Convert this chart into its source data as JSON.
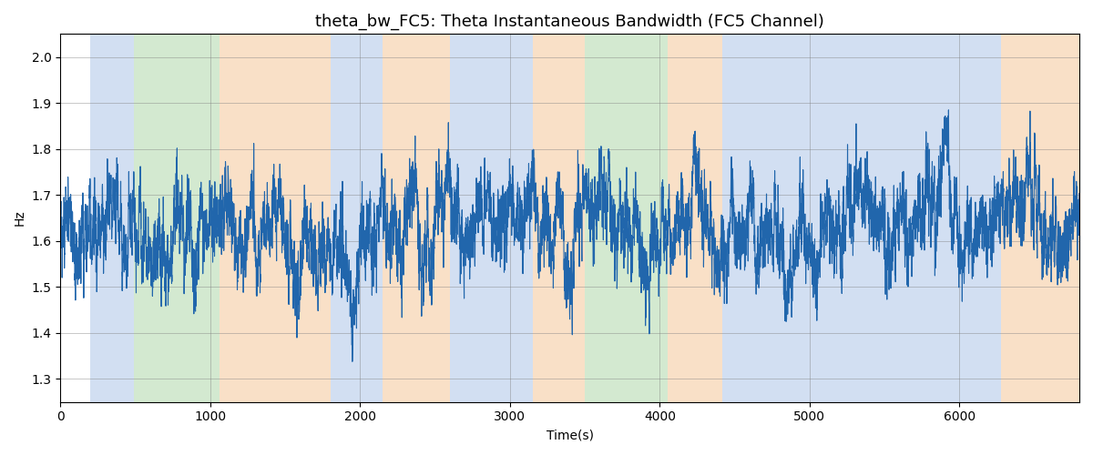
{
  "title": "theta_bw_FC5: Theta Instantaneous Bandwidth (FC5 Channel)",
  "xlabel": "Time(s)",
  "ylabel": "Hz",
  "ylim": [
    1.25,
    2.05
  ],
  "xlim": [
    0,
    6800
  ],
  "line_color": "#2166ac",
  "line_width": 0.8,
  "bg_color": "white",
  "figsize": [
    12,
    5
  ],
  "dpi": 100,
  "regions": [
    {
      "start": 200,
      "end": 490,
      "color": "#aec6e8",
      "alpha": 0.55
    },
    {
      "start": 490,
      "end": 1060,
      "color": "#a8d5a2",
      "alpha": 0.5
    },
    {
      "start": 1060,
      "end": 1800,
      "color": "#f5c89a",
      "alpha": 0.55
    },
    {
      "start": 1800,
      "end": 2150,
      "color": "#aec6e8",
      "alpha": 0.55
    },
    {
      "start": 2150,
      "end": 2600,
      "color": "#f5c89a",
      "alpha": 0.55
    },
    {
      "start": 2600,
      "end": 3150,
      "color": "#aec6e8",
      "alpha": 0.55
    },
    {
      "start": 3150,
      "end": 3500,
      "color": "#f5c89a",
      "alpha": 0.55
    },
    {
      "start": 3500,
      "end": 4050,
      "color": "#a8d5a2",
      "alpha": 0.5
    },
    {
      "start": 4050,
      "end": 4420,
      "color": "#f5c89a",
      "alpha": 0.55
    },
    {
      "start": 4420,
      "end": 6280,
      "color": "#aec6e8",
      "alpha": 0.55
    },
    {
      "start": 6280,
      "end": 6800,
      "color": "#f5c89a",
      "alpha": 0.55
    }
  ],
  "seed": 42,
  "n_points": 6800,
  "mean": 1.63,
  "title_fontsize": 13
}
